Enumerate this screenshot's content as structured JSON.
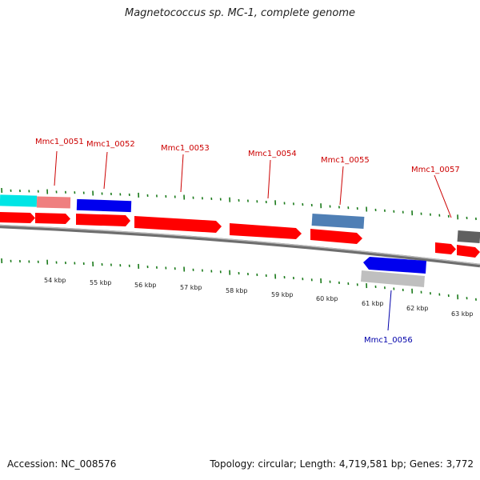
{
  "title": "Magnetococcus sp. MC-1, complete genome",
  "footer": {
    "accession": "Accession: NC_008576",
    "summary": "Topology: circular; Length: 4,719,581 bp; Genes: 3,772"
  },
  "colors": {
    "forward_cds": "#ff0000",
    "forward_label": "#cc0000",
    "reverse_label": "#0000aa",
    "blue_gene": "#0000ee",
    "steelblue_gene": "#4f7fb5",
    "gray_gene": "#bfbfbf",
    "dark_gray_gene": "#606060",
    "cyan_gene": "#00e5e5",
    "pink_gene": "#ef7f7f",
    "tick": "#1a7a1a",
    "backbone": "#7a7a7a"
  },
  "genes": [
    {
      "label": "Mmc1_0051",
      "strand": "forward"
    },
    {
      "label": "Mmc1_0052",
      "strand": "forward"
    },
    {
      "label": "Mmc1_0053",
      "strand": "forward"
    },
    {
      "label": "Mmc1_0054",
      "strand": "forward"
    },
    {
      "label": "Mmc1_0055",
      "strand": "forward"
    },
    {
      "label": "Mmc1_0056",
      "strand": "reverse"
    },
    {
      "label": "Mmc1_0057",
      "strand": "forward"
    }
  ],
  "scale": {
    "ticks": [
      "54 kbp",
      "55 kbp",
      "56 kbp",
      "57 kbp",
      "58 kbp",
      "59 kbp",
      "60 kbp",
      "61 kbp",
      "62 kbp",
      "63 kbp"
    ]
  }
}
